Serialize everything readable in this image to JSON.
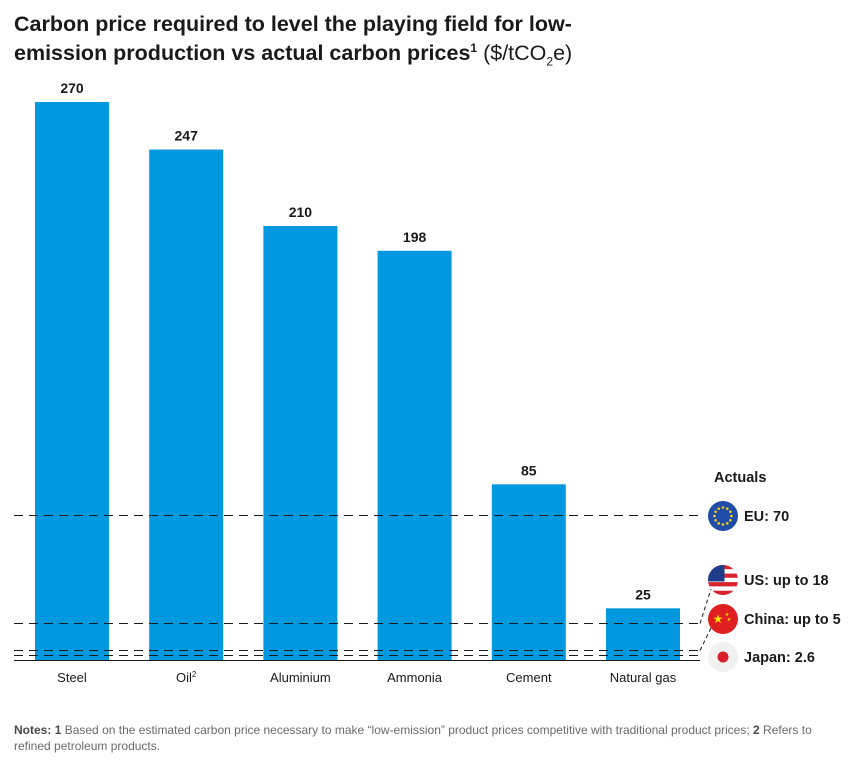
{
  "title": {
    "line1": "Carbon price required to level the playing field for low-",
    "line2": "emission production vs actual carbon prices",
    "footnote_mark": "1",
    "unit_prefix": "($/tCO",
    "unit_sub": "2",
    "unit_suffix": "e)"
  },
  "chart_data": {
    "type": "bar",
    "categories": [
      "Steel",
      "Oil",
      "Aluminium",
      "Ammonia",
      "Cement",
      "Natural gas"
    ],
    "category_superscripts": [
      "",
      "2",
      "",
      "",
      "",
      ""
    ],
    "values": [
      270,
      247,
      210,
      198,
      85,
      25
    ],
    "bar_color": "#0099e0",
    "reference_lines": {
      "heading": "Actuals",
      "items": [
        {
          "label": "EU: 70",
          "value": 70,
          "flag": "eu-flag-icon"
        },
        {
          "label": "US: up to 18",
          "value": 18,
          "flag": "us-flag-icon"
        },
        {
          "label": "China: up to 5",
          "value": 5,
          "flag": "china-flag-icon"
        },
        {
          "label": "Japan: 2.6",
          "value": 2.6,
          "flag": "japan-flag-icon"
        }
      ]
    },
    "ylim": [
      0,
      270
    ],
    "grid": false
  },
  "notes": {
    "prefix": "Notes:",
    "n1": "1",
    "text1": " Based on the estimated carbon price necessary to make “low-emission” product prices competitive with traditional product prices; ",
    "n2": "2",
    "text2": " Refers to refined petroleum products."
  }
}
